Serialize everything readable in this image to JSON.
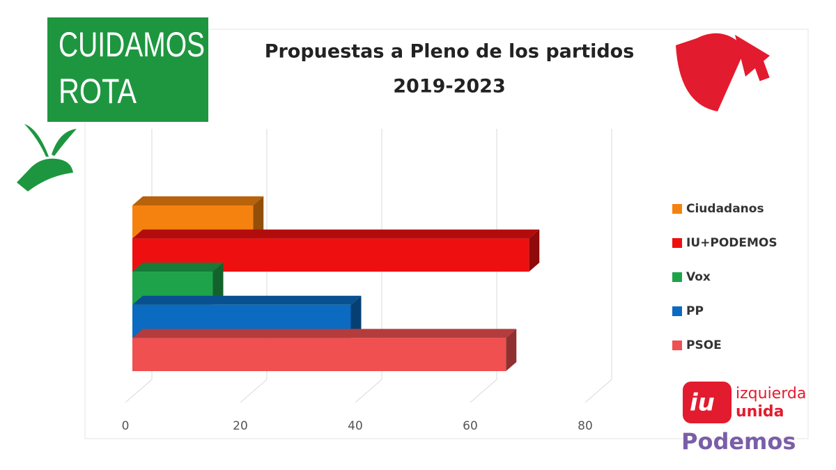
{
  "branding": {
    "campaign": [
      "CUIDAMOS",
      "ROTA"
    ],
    "party": [
      "izquierda",
      "unida"
    ],
    "partner": "Podemos"
  },
  "chart_data": {
    "type": "bar",
    "orientation": "horizontal",
    "title": [
      "Propuestas a Pleno de los partidos",
      "2019-2023"
    ],
    "categories": [
      null
    ],
    "series": [
      {
        "name": "Ciudadanos",
        "color": "#f5820f",
        "values": [
          21
        ]
      },
      {
        "name": "IU+PODEMOS",
        "color": "#ee1010",
        "values": [
          69
        ]
      },
      {
        "name": "Vox",
        "color": "#1fa34a",
        "values": [
          14
        ]
      },
      {
        "name": "PP",
        "color": "#0a6bc0",
        "values": [
          38
        ]
      },
      {
        "name": "PSOE",
        "color": "#f05050",
        "values": [
          65
        ]
      }
    ],
    "xlim": [
      0,
      80
    ],
    "xticks": [
      0,
      20,
      40,
      60,
      80
    ],
    "grid": true,
    "legend": "right"
  }
}
